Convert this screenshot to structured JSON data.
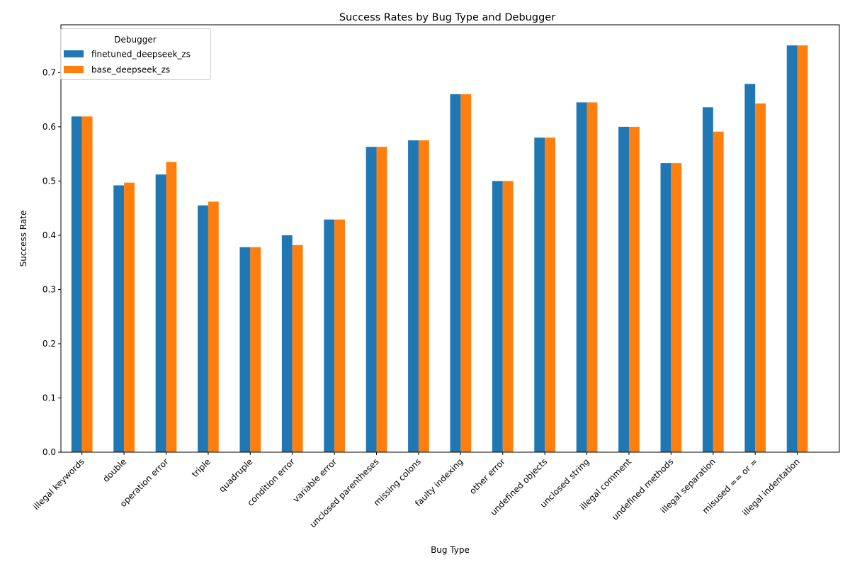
{
  "chart_data": {
    "type": "bar",
    "title": "Success Rates by Bug Type and Debugger",
    "xlabel": "Bug Type",
    "ylabel": "Success Rate",
    "ylim": [
      0,
      0.788
    ],
    "yticks": [
      0.0,
      0.1,
      0.2,
      0.3,
      0.4,
      0.5,
      0.6,
      0.7
    ],
    "grid": false,
    "legend": {
      "title": "Debugger",
      "placement": "top-left"
    },
    "categories": [
      "illegal keywords",
      "double",
      "operation error",
      "triple",
      "quadruple",
      "condition error",
      "variable error",
      "unclosed parentheses",
      "missing colons",
      "faulty indexing",
      "other error",
      "undefined objects",
      "unclosed string",
      "illegal comment",
      "undefined methods",
      "illegal separation",
      "misused == or =",
      "illegal indentation"
    ],
    "series": [
      {
        "name": "finetuned_deepseek_zs",
        "color": "#1f77b4",
        "values": [
          0.619,
          0.492,
          0.512,
          0.455,
          0.378,
          0.4,
          0.429,
          0.563,
          0.575,
          0.66,
          0.5,
          0.58,
          0.645,
          0.6,
          0.533,
          0.636,
          0.679,
          0.75
        ]
      },
      {
        "name": "base_deepseek_zs",
        "color": "#ff7f0e",
        "values": [
          0.619,
          0.497,
          0.535,
          0.462,
          0.378,
          0.382,
          0.429,
          0.563,
          0.575,
          0.66,
          0.5,
          0.58,
          0.645,
          0.6,
          0.533,
          0.591,
          0.643,
          0.75
        ]
      }
    ]
  }
}
